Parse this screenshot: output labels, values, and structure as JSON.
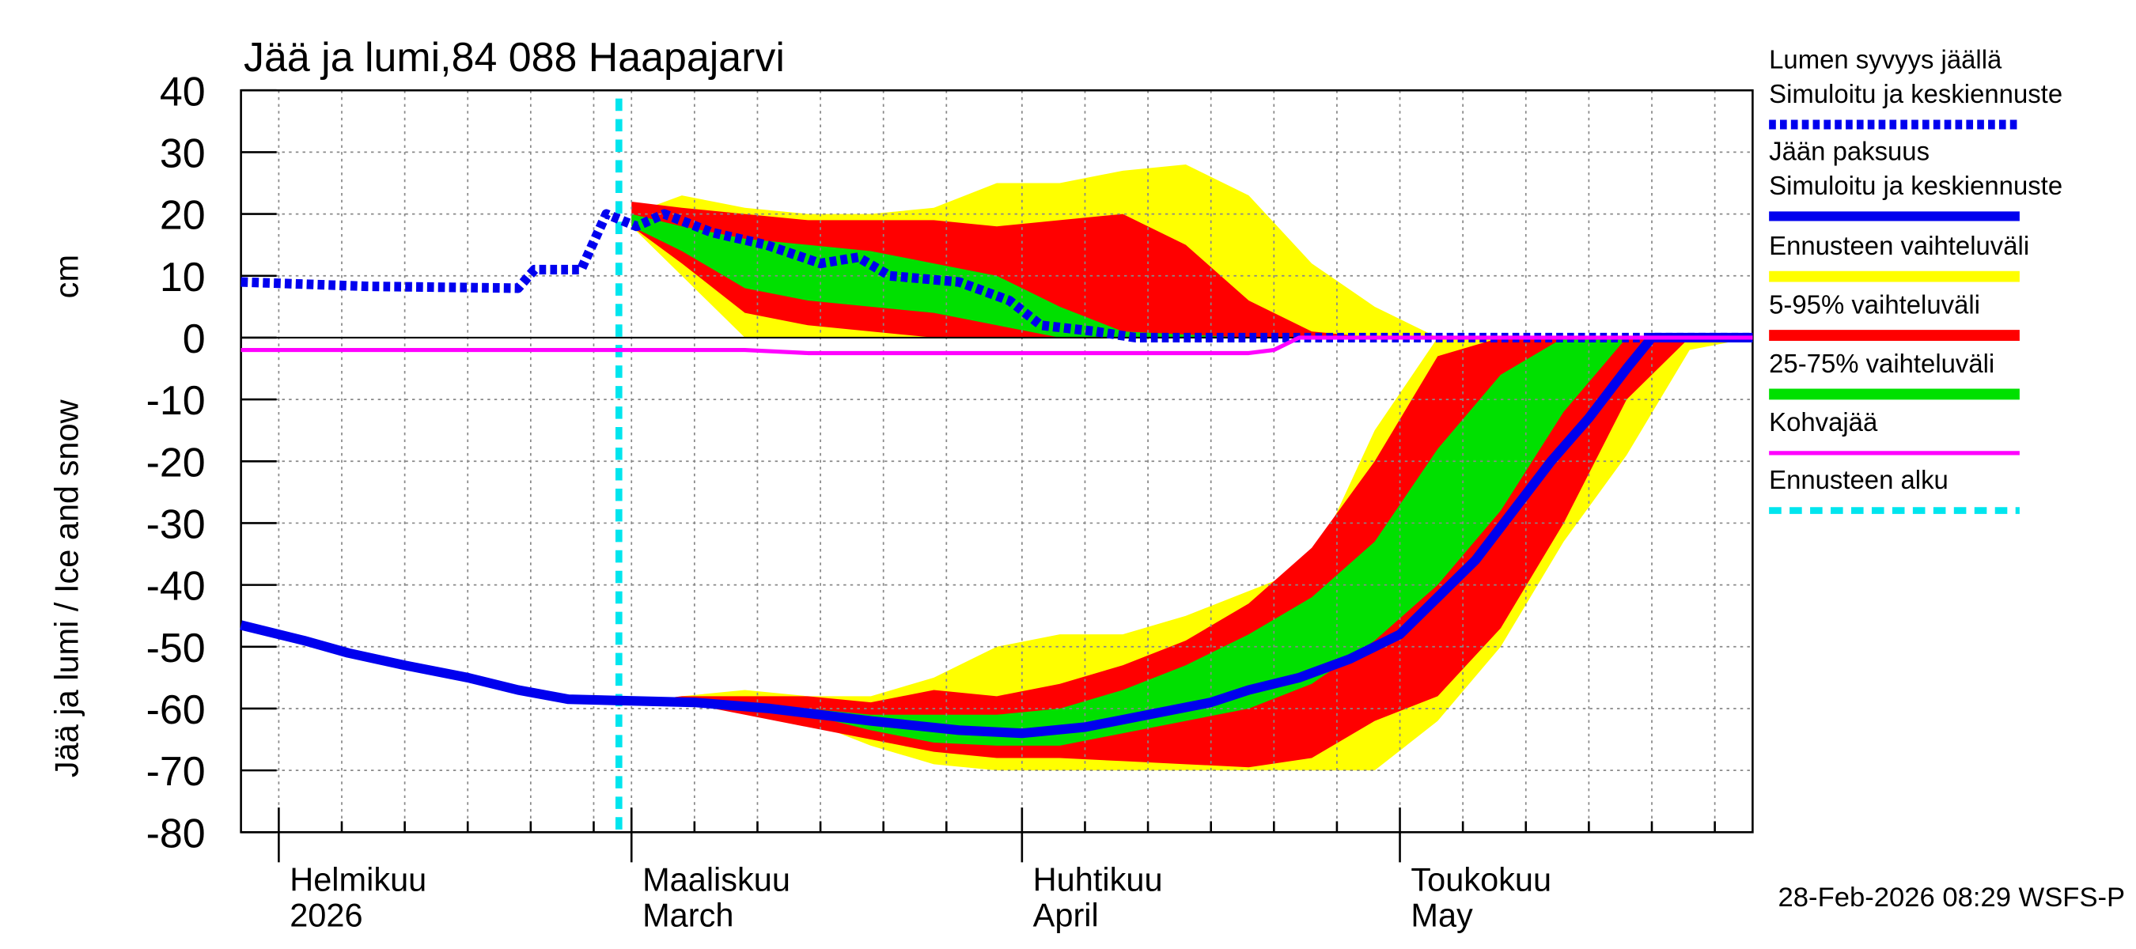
{
  "chart_data": {
    "type": "line",
    "title": "Jää ja lumi,84 088 Haapajarvi",
    "ylabel": "Jää ja lumi / Ice and snow",
    "yunit": "cm",
    "footer": "28-Feb-2026 08:29 WSFS-P",
    "xlim": [
      0,
      120
    ],
    "xticks": [
      {
        "value": 3,
        "label": "Helmikuu"
      },
      {
        "value": 31,
        "label": "Maaliskuu"
      },
      {
        "value": 62,
        "label": "Huhtikuu"
      },
      {
        "value": 92,
        "label": "Toukokuu"
      }
    ],
    "xtick_sublabels": [
      "2026",
      "March",
      "April",
      "May"
    ],
    "xminor": [
      8,
      13,
      18,
      23,
      28,
      36,
      41,
      46,
      51,
      56,
      67,
      72,
      77,
      82,
      87,
      97,
      102,
      107,
      112,
      117
    ],
    "ylim": [
      -80,
      40
    ],
    "yticks": [
      -80,
      -70,
      -60,
      -50,
      -40,
      -30,
      -20,
      -10,
      0,
      10,
      20,
      30,
      40
    ],
    "grid": true,
    "band_x": [
      31,
      35,
      40,
      45,
      50,
      55,
      60,
      65,
      70,
      75,
      80,
      85,
      90,
      95,
      100,
      105,
      110,
      115,
      120
    ],
    "bands": [
      {
        "name": [
          "Ennusteen vaihteluväli"
        ],
        "color": "#ffff00",
        "snow_low": [
          18,
          10,
          0,
          0,
          0,
          0,
          0,
          0,
          0,
          0,
          0,
          0,
          0,
          0,
          0,
          0,
          0,
          0,
          0
        ],
        "snow_high": [
          20,
          23,
          21,
          20,
          20,
          21,
          25,
          25,
          27,
          28,
          23,
          12,
          5,
          0,
          0,
          0,
          0,
          0,
          0
        ],
        "ice_low": [
          -59,
          -59,
          -60,
          -62,
          -66,
          -69,
          -70,
          -70,
          -70,
          -70,
          -70,
          -70,
          -70,
          -62,
          -50,
          -33,
          -19,
          -2,
          0
        ],
        "ice_high": [
          -59,
          -58,
          -57,
          -58,
          -58,
          -55,
          -50,
          -48,
          -48,
          -45,
          -41,
          -37,
          -15,
          0,
          0,
          0,
          0,
          0,
          0
        ]
      },
      {
        "name": [
          "5-95% vaihteluväli"
        ],
        "color": "#ff0000",
        "snow_low": [
          18,
          12,
          4,
          2,
          1,
          0,
          0,
          0,
          0,
          0,
          0,
          0,
          0,
          0,
          0,
          0,
          0,
          0,
          0
        ],
        "snow_high": [
          22,
          21,
          20,
          19,
          19,
          19,
          18,
          19,
          20,
          15,
          6,
          1,
          0,
          0,
          0,
          0,
          0,
          0,
          0
        ],
        "ice_low": [
          -59,
          -59,
          -61,
          -63,
          -65,
          -67,
          -68,
          -68,
          -68.5,
          -69,
          -69.5,
          -68,
          -62,
          -58,
          -47,
          -30,
          -10,
          0,
          0
        ],
        "ice_high": [
          -59,
          -58,
          -58,
          -58,
          -59,
          -57,
          -58,
          -56,
          -53,
          -49,
          -43,
          -34,
          -20,
          -3,
          0,
          0,
          0,
          0,
          0
        ]
      },
      {
        "name": [
          "25-75% vaihteluväli"
        ],
        "color": "#00e000",
        "snow_low": [
          18,
          14,
          8,
          6,
          5,
          4,
          2,
          0,
          0,
          0,
          0,
          0,
          0,
          0,
          0,
          0,
          0,
          0,
          0
        ],
        "snow_high": [
          20,
          18,
          16,
          15,
          14,
          12,
          10,
          5,
          1,
          0.5,
          0,
          0,
          0,
          0,
          0,
          0,
          0,
          0,
          0
        ],
        "ice_low": [
          -59,
          -59,
          -60,
          -61,
          -63.5,
          -65.5,
          -66,
          -66,
          -64,
          -62,
          -60,
          -56,
          -49,
          -40,
          -28,
          -12,
          0,
          0,
          0
        ],
        "ice_high": [
          -59,
          -59,
          -59,
          -60,
          -61,
          -61,
          -61,
          -60,
          -57,
          -53,
          -48,
          -42,
          -33,
          -18,
          -6,
          0,
          0,
          0,
          0
        ]
      }
    ],
    "series": [
      {
        "name": [
          "Lumen syvyys jäällä",
          "Simuloitu ja keskiennuste"
        ],
        "color": "#0000ee",
        "dashed": true,
        "x": [
          0,
          10,
          22,
          23.3,
          27,
          29,
          31.4,
          33.6,
          37.4,
          41.7,
          46,
          49,
          51.5,
          57,
          61,
          63.5,
          67.8,
          71,
          120
        ],
        "values": [
          9,
          8.3,
          8,
          11,
          11,
          20,
          18,
          20,
          17,
          15,
          12,
          13,
          10,
          9,
          6,
          2,
          1,
          0,
          0
        ]
      },
      {
        "name": [
          "Jään paksuus",
          "Simuloitu ja keskiennuste"
        ],
        "color": "#0000ee",
        "dashed": false,
        "x": [
          0,
          5,
          8.5,
          13,
          18,
          22,
          26,
          36,
          42,
          50,
          57,
          62,
          67,
          72,
          77,
          80,
          84,
          88,
          92,
          95,
          98,
          101,
          104,
          107,
          110,
          112,
          120
        ],
        "values": [
          -46.5,
          -49,
          -51,
          -53,
          -55,
          -57,
          -58.5,
          -59,
          -60,
          -62,
          -63.5,
          -64,
          -63,
          -61,
          -59,
          -57,
          -55,
          -52,
          -48,
          -42,
          -36,
          -28,
          -20,
          -13,
          -5,
          0,
          0
        ]
      },
      {
        "name": [
          "Kohvajää"
        ],
        "color": "#ff00ff",
        "dashed": false,
        "thin": true,
        "x": [
          0,
          40,
          45,
          80,
          82,
          84,
          120
        ],
        "values": [
          -2,
          -2,
          -2.5,
          -2.5,
          -2,
          0,
          0
        ]
      }
    ],
    "forecast_start": {
      "name": [
        "Ennusteen alku"
      ],
      "color": "#00e5ee",
      "x": 30
    }
  }
}
